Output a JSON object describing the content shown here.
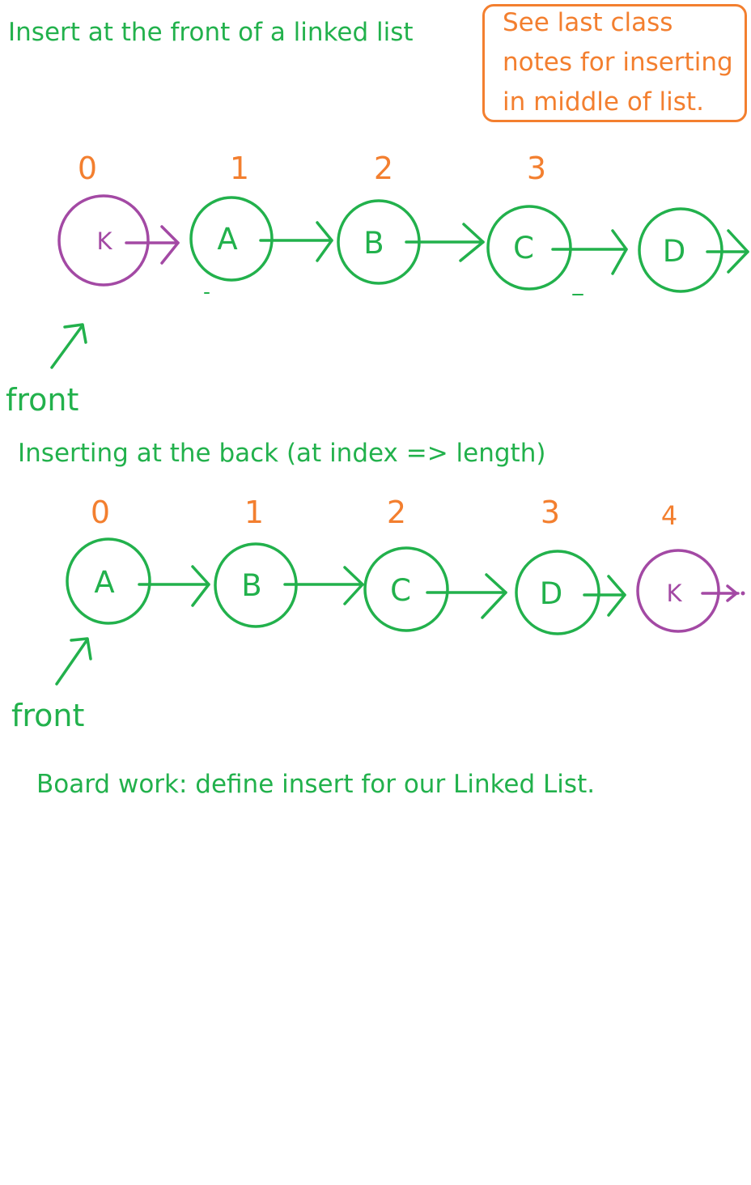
{
  "colors": {
    "green": "#22b14c",
    "orange": "#f37f2f",
    "purple": "#a349a4",
    "background": "#ffffff"
  },
  "titles": {
    "front": "Insert at the front of a linked list",
    "back": "Inserting at the back (at index => length)",
    "board_work": "Board work: define insert for our Linked List."
  },
  "note": {
    "lines": [
      "See last class",
      "notes for inserting",
      "in middle of list."
    ]
  },
  "front_label": "front",
  "front_list": {
    "indices": [
      "0",
      "1",
      "2",
      "3"
    ],
    "nodes": [
      {
        "label": "K",
        "color": "purple"
      },
      {
        "label": "A",
        "color": "green"
      },
      {
        "label": "B",
        "color": "green"
      },
      {
        "label": "C",
        "color": "green"
      },
      {
        "label": "D",
        "color": "green"
      }
    ]
  },
  "back_list": {
    "indices": [
      "0",
      "1",
      "2",
      "3",
      "4"
    ],
    "nodes": [
      {
        "label": "A",
        "color": "green"
      },
      {
        "label": "B",
        "color": "green"
      },
      {
        "label": "C",
        "color": "green"
      },
      {
        "label": "D",
        "color": "green"
      },
      {
        "label": "K",
        "color": "purple"
      }
    ]
  }
}
